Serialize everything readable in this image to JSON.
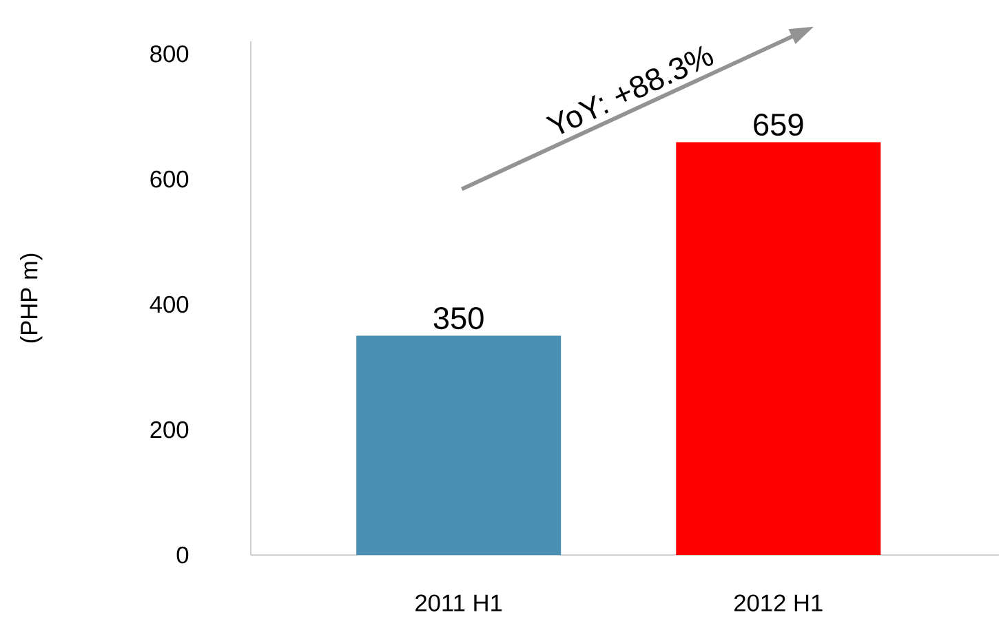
{
  "chart_data": {
    "type": "bar",
    "ylabel": "(PHP m)",
    "categories": [
      "2011 H1",
      "2012 H1"
    ],
    "values": [
      350,
      659
    ],
    "colors": [
      "#4a90b4",
      "#ff0000"
    ],
    "ylim": [
      0,
      820
    ],
    "yticks": [
      0,
      200,
      400,
      600,
      800
    ],
    "data_labels": true,
    "grid": false,
    "annotations": [
      "YoY: +88.3%"
    ]
  }
}
